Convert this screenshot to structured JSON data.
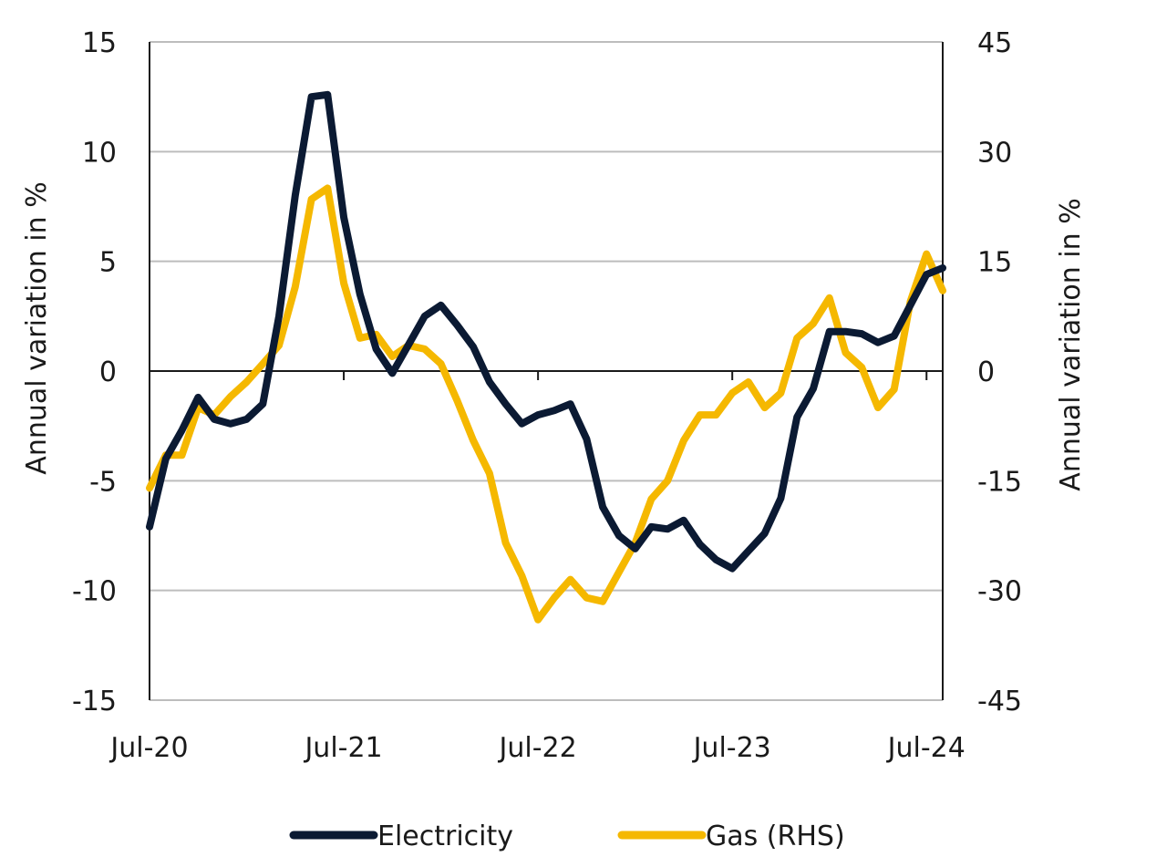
{
  "chart_data": {
    "type": "line",
    "x": [
      "2020-07",
      "2020-08",
      "2020-09",
      "2020-10",
      "2020-11",
      "2020-12",
      "2021-01",
      "2021-02",
      "2021-03",
      "2021-04",
      "2021-05",
      "2021-06",
      "2021-07",
      "2021-08",
      "2021-09",
      "2021-10",
      "2021-11",
      "2021-12",
      "2022-01",
      "2022-02",
      "2022-03",
      "2022-04",
      "2022-05",
      "2022-06",
      "2022-07",
      "2022-08",
      "2022-09",
      "2022-10",
      "2022-11",
      "2022-12",
      "2023-01",
      "2023-02",
      "2023-03",
      "2023-04",
      "2023-05",
      "2023-06",
      "2023-07",
      "2023-08",
      "2023-09",
      "2023-10",
      "2023-11",
      "2023-12",
      "2024-01",
      "2024-02",
      "2024-03",
      "2024-04",
      "2024-05",
      "2024-06",
      "2024-07",
      "2024-08"
    ],
    "x_ticks": [
      "Jul-20",
      "Jul-21",
      "Jul-22",
      "Jul-23",
      "Jul-24"
    ],
    "x_tick_positions": [
      "2020-07",
      "2021-07",
      "2022-07",
      "2023-07",
      "2024-07"
    ],
    "series": [
      {
        "name": "Electricity",
        "axis": "left",
        "color": "#0b1a33",
        "values": [
          -7.1,
          -4.0,
          -2.7,
          -1.2,
          -2.2,
          -2.4,
          -2.2,
          -1.5,
          2.5,
          8.0,
          12.5,
          12.6,
          7.0,
          3.5,
          1.0,
          -0.1,
          1.2,
          2.5,
          3.0,
          2.1,
          1.1,
          -0.5,
          -1.5,
          -2.4,
          -2.0,
          -1.8,
          -1.5,
          -3.1,
          -6.2,
          -7.5,
          -8.1,
          -7.1,
          -7.2,
          -6.8,
          -7.9,
          -8.6,
          -9.0,
          -8.2,
          -7.4,
          -5.8,
          -2.1,
          -0.8,
          1.8,
          1.8,
          1.7,
          1.3,
          1.6,
          3.0,
          4.4,
          4.7
        ]
      },
      {
        "name": "Gas (RHS)",
        "axis": "right",
        "color": "#f5b800",
        "values": [
          -16.0,
          -11.5,
          -11.5,
          -5.0,
          -6.0,
          -3.5,
          -1.5,
          1.0,
          3.5,
          11.5,
          23.5,
          25.0,
          12.0,
          4.5,
          5.0,
          2.0,
          3.5,
          3.0,
          1.0,
          -4.0,
          -9.5,
          -14.0,
          -23.5,
          -28.0,
          -34.0,
          -31.0,
          -28.5,
          -31.0,
          -31.5,
          -27.5,
          -23.5,
          -17.5,
          -15.0,
          -9.5,
          -6.0,
          -6.0,
          -3.0,
          -1.5,
          -5.0,
          -3.0,
          4.5,
          6.5,
          10.0,
          2.5,
          0.5,
          -5.0,
          -2.5,
          9.5,
          16.0,
          11.0
        ]
      }
    ],
    "left_axis": {
      "label": "Annual variation in %",
      "min": -15,
      "max": 15,
      "ticks": [
        "15",
        "10",
        "5",
        "0",
        "-5",
        "-10",
        "-15"
      ]
    },
    "right_axis": {
      "label": "Annual variation in %",
      "min": -45,
      "max": 45,
      "ticks": [
        "45",
        "30",
        "15",
        "0",
        "-15",
        "-30",
        "-45"
      ]
    },
    "grid": "horizontal",
    "legend_position": "bottom"
  },
  "legend": [
    {
      "label": "Electricity",
      "color": "#0b1a33"
    },
    {
      "label": "Gas (RHS)",
      "color": "#f5b800"
    }
  ]
}
